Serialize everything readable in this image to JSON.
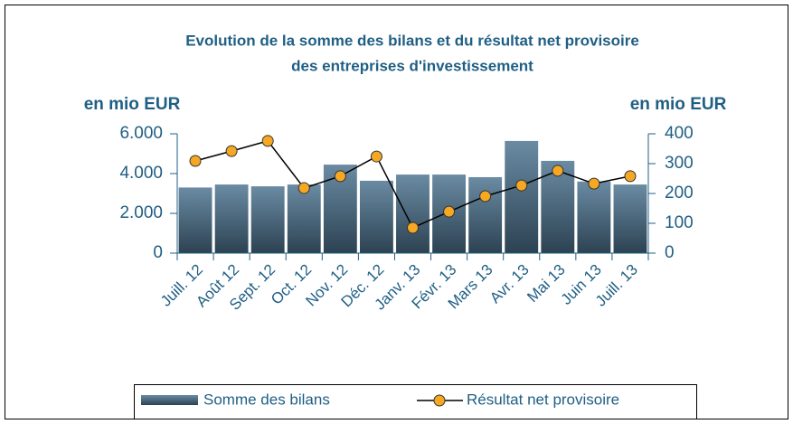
{
  "chart_data": {
    "type": "bar_line",
    "title": [
      "Evolution de la somme des bilans et du résultat net provisoire",
      "des entreprises d'investissement"
    ],
    "y_label": "en mio EUR",
    "y2_label": "en mio EUR",
    "categories": [
      "Juill. 12",
      "Août 12",
      "Sept. 12",
      "Oct. 12",
      "Nov. 12",
      "Déc. 12",
      "Janv. 13",
      "Févr. 13",
      "Mars 13",
      "Avr. 13",
      "Mai 13",
      "Juin 13",
      "Juill. 13"
    ],
    "series": [
      {
        "name": "Somme des bilans",
        "type": "bar",
        "color": "#6a8ba3",
        "values": [
          3300,
          3450,
          3360,
          3450,
          4450,
          3640,
          3950,
          3950,
          3820,
          5640,
          4640,
          3600,
          3450
        ]
      },
      {
        "name": "Résultat net provisoire",
        "type": "line",
        "axis": "y2",
        "color": "#000000",
        "marker_color": "#f7a823",
        "values": [
          309,
          342,
          376,
          218,
          258,
          324,
          85,
          139,
          191,
          227,
          276,
          233,
          258
        ]
      }
    ],
    "ylim": [
      0,
      6000
    ],
    "yticks": [
      0,
      {
        "value": 2000,
        "label": "2.000"
      },
      {
        "value": 4000,
        "label": "4.000"
      },
      {
        "value": 6000,
        "label": "6.000"
      }
    ],
    "y2lim": [
      0,
      400
    ],
    "y2ticks": [
      0,
      100,
      200,
      300,
      400
    ],
    "legend": "bottom"
  }
}
